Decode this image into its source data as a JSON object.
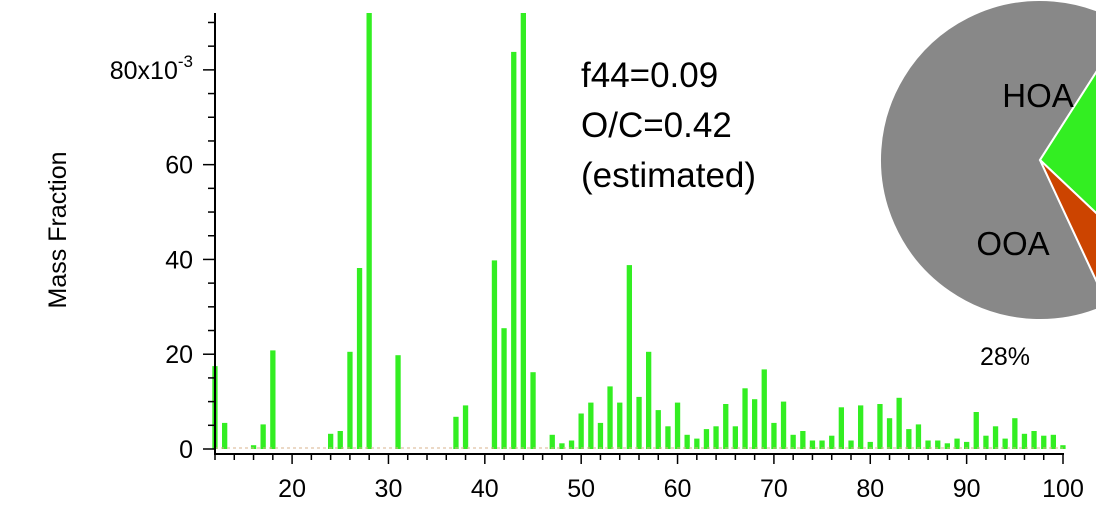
{
  "chart_data": [
    {
      "type": "bar",
      "title": "",
      "xlabel": "",
      "ylabel": "Mass Fraction",
      "xlim": [
        12,
        100
      ],
      "ylim": [
        0,
        0.092
      ],
      "x_ticks": [
        20,
        30,
        40,
        50,
        60,
        70,
        80,
        90,
        100
      ],
      "y_ticks": [
        0,
        0.02,
        0.04,
        0.06,
        0.08
      ],
      "y_tick_labels": [
        "0",
        "20",
        "40",
        "60",
        "80x10-3"
      ],
      "grid": false,
      "legend": "none",
      "bar_color": "#33ee22",
      "points": [
        {
          "x": 12,
          "y": 0.0175
        },
        {
          "x": 13,
          "y": 0.0055
        },
        {
          "x": 16,
          "y": 0.0008
        },
        {
          "x": 17,
          "y": 0.0052
        },
        {
          "x": 18,
          "y": 0.0208
        },
        {
          "x": 24,
          "y": 0.0032
        },
        {
          "x": 25,
          "y": 0.0038
        },
        {
          "x": 26,
          "y": 0.0205
        },
        {
          "x": 27,
          "y": 0.0382
        },
        {
          "x": 28,
          "y": 0.092
        },
        {
          "x": 31,
          "y": 0.0198
        },
        {
          "x": 37,
          "y": 0.0068
        },
        {
          "x": 38,
          "y": 0.0092
        },
        {
          "x": 41,
          "y": 0.0398
        },
        {
          "x": 42,
          "y": 0.0255
        },
        {
          "x": 43,
          "y": 0.0838
        },
        {
          "x": 44,
          "y": 0.092
        },
        {
          "x": 45,
          "y": 0.0162
        },
        {
          "x": 47,
          "y": 0.003
        },
        {
          "x": 48,
          "y": 0.0012
        },
        {
          "x": 49,
          "y": 0.0018
        },
        {
          "x": 50,
          "y": 0.0075
        },
        {
          "x": 51,
          "y": 0.0098
        },
        {
          "x": 52,
          "y": 0.0055
        },
        {
          "x": 53,
          "y": 0.0132
        },
        {
          "x": 54,
          "y": 0.0098
        },
        {
          "x": 55,
          "y": 0.0388
        },
        {
          "x": 56,
          "y": 0.011
        },
        {
          "x": 57,
          "y": 0.0205
        },
        {
          "x": 58,
          "y": 0.0082
        },
        {
          "x": 59,
          "y": 0.0048
        },
        {
          "x": 60,
          "y": 0.0098
        },
        {
          "x": 61,
          "y": 0.003
        },
        {
          "x": 62,
          "y": 0.0022
        },
        {
          "x": 63,
          "y": 0.0042
        },
        {
          "x": 64,
          "y": 0.0048
        },
        {
          "x": 65,
          "y": 0.0095
        },
        {
          "x": 66,
          "y": 0.0048
        },
        {
          "x": 67,
          "y": 0.0128
        },
        {
          "x": 68,
          "y": 0.0105
        },
        {
          "x": 69,
          "y": 0.0168
        },
        {
          "x": 70,
          "y": 0.0055
        },
        {
          "x": 71,
          "y": 0.01
        },
        {
          "x": 72,
          "y": 0.003
        },
        {
          "x": 73,
          "y": 0.0038
        },
        {
          "x": 74,
          "y": 0.0018
        },
        {
          "x": 75,
          "y": 0.0018
        },
        {
          "x": 76,
          "y": 0.0028
        },
        {
          "x": 77,
          "y": 0.0088
        },
        {
          "x": 78,
          "y": 0.0018
        },
        {
          "x": 79,
          "y": 0.0092
        },
        {
          "x": 80,
          "y": 0.0015
        },
        {
          "x": 81,
          "y": 0.0095
        },
        {
          "x": 82,
          "y": 0.0065
        },
        {
          "x": 83,
          "y": 0.0108
        },
        {
          "x": 84,
          "y": 0.0042
        },
        {
          "x": 85,
          "y": 0.0052
        },
        {
          "x": 86,
          "y": 0.0018
        },
        {
          "x": 87,
          "y": 0.0018
        },
        {
          "x": 88,
          "y": 0.0012
        },
        {
          "x": 89,
          "y": 0.0022
        },
        {
          "x": 90,
          "y": 0.0015
        },
        {
          "x": 91,
          "y": 0.0078
        },
        {
          "x": 92,
          "y": 0.0028
        },
        {
          "x": 93,
          "y": 0.0048
        },
        {
          "x": 94,
          "y": 0.0022
        },
        {
          "x": 95,
          "y": 0.0065
        },
        {
          "x": 96,
          "y": 0.0032
        },
        {
          "x": 97,
          "y": 0.0038
        },
        {
          "x": 98,
          "y": 0.0028
        },
        {
          "x": 99,
          "y": 0.003
        },
        {
          "x": 100,
          "y": 0.0008
        }
      ],
      "annotations": [
        "f44=0.09",
        "O/C=0.42",
        "(estimated)"
      ]
    },
    {
      "type": "pie",
      "title": "",
      "note": "pie is cropped at the right edge of the image",
      "slices": [
        {
          "label": "HOA",
          "value": 66,
          "color": "#888888"
        },
        {
          "label": "OOA",
          "value": 28,
          "color": "#33ee22",
          "percent_label": "28%"
        },
        {
          "label": "",
          "value": 6,
          "color": "#cc4400"
        }
      ]
    }
  ]
}
